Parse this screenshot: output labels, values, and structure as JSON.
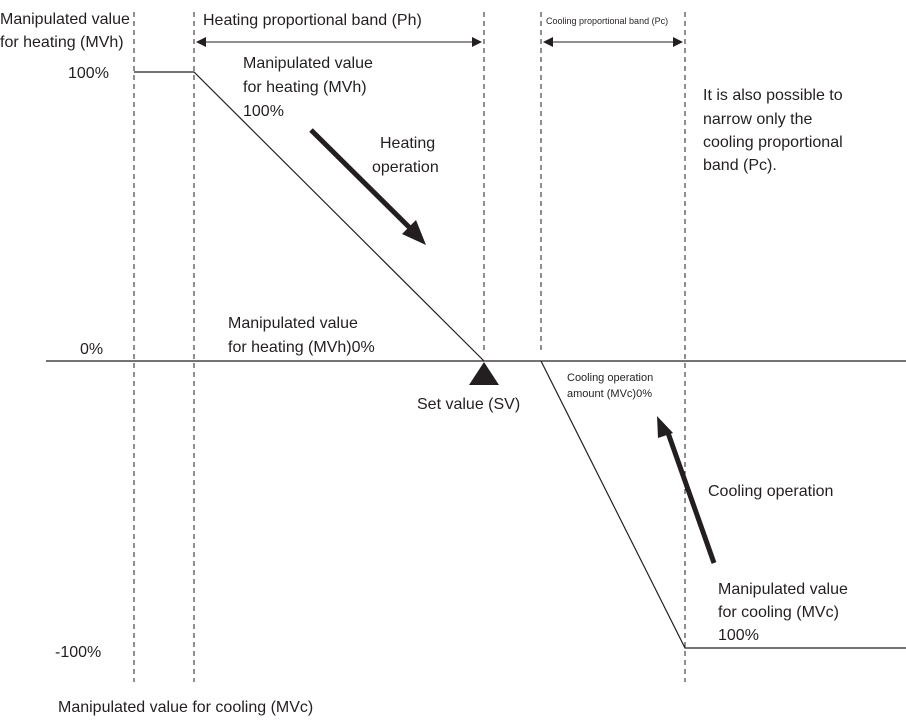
{
  "labels": {
    "y_axis_top": [
      "Manipulated value",
      "for heating (MVh)"
    ],
    "y_axis_bottom": "Manipulated value for cooling (MVc)",
    "tick_100": "100%",
    "tick_0": "0%",
    "tick_minus_100": "-100%",
    "heating_band": "Heating proportional band (Ph)",
    "cooling_band": "Cooling proportional band (Pc)",
    "mvh_100": [
      "Manipulated value",
      "for heating (MVh)",
      "100%"
    ],
    "heating_operation": [
      "Heating",
      "operation"
    ],
    "mvh_0": [
      "Manipulated value",
      "for heating (MVh)0%"
    ],
    "set_value": "Set value (SV)",
    "cooling_amount": [
      "Cooling operation",
      "amount (MVc)0%"
    ],
    "cooling_operation": "Cooling operation",
    "mvc_100": [
      "Manipulated value",
      "for cooling (MVc)",
      "100%"
    ],
    "note": [
      "It is also possible to",
      "narrow only the",
      "cooling proportional",
      "band (Pc)."
    ]
  },
  "colors": {
    "ink": "#231f20",
    "background": "#ffffff"
  }
}
